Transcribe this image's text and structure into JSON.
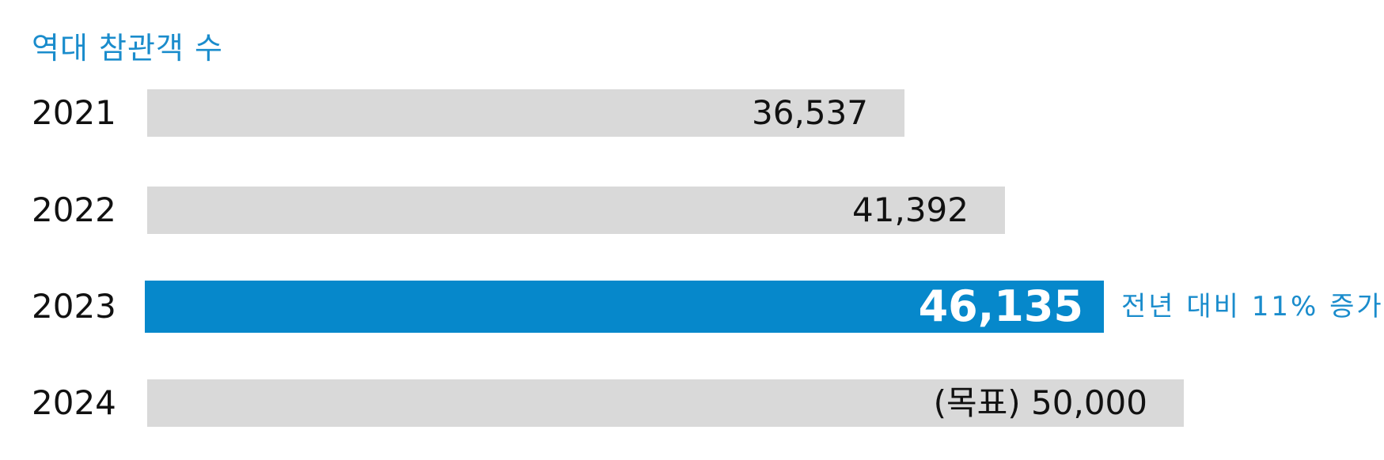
{
  "chart_data": {
    "type": "bar",
    "orientation": "horizontal",
    "title": "역대 참관객 수",
    "categories": [
      "2021",
      "2022",
      "2023",
      "2024"
    ],
    "value_labels": [
      "36,537",
      "41,392",
      "46,135",
      "(목표) 50,000"
    ],
    "values": [
      36537,
      41392,
      46135,
      50000
    ],
    "highlight_index": 2,
    "annotation": "전년 대비 11% 증가",
    "xlim": [
      0,
      50000
    ],
    "grid": false,
    "colors": {
      "bar": "#d9d9d9",
      "highlight": "#0688cb",
      "title": "#1a8ccc",
      "annotation": "#1a8ccc"
    }
  }
}
